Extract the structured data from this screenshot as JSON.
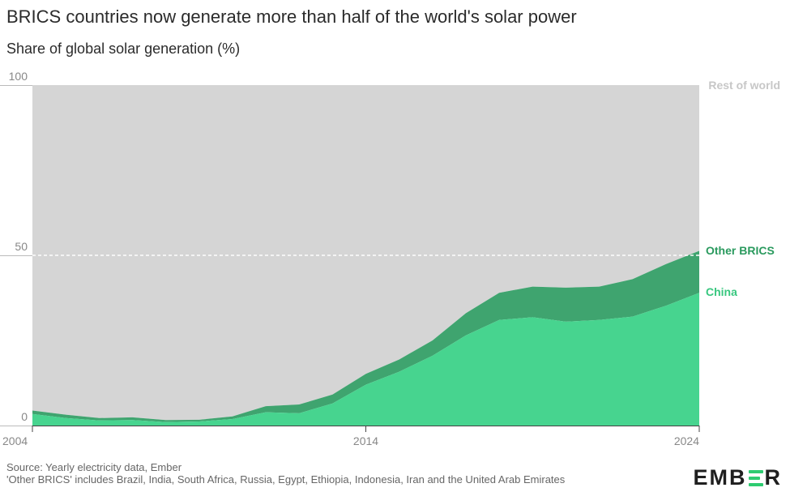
{
  "title": "BRICS countries now generate more than half of the world's solar power",
  "subtitle": "Share of global solar generation (%)",
  "source_line1": "Source: Yearly electricity data, Ember",
  "source_line2": "'Other BRICS' includes Brazil, India, South Africa, Russia, Egypt, Ethiopia, Indonesia, Iran and the United Arab Emirates",
  "logo": {
    "before": "EMB",
    "after": "R"
  },
  "colors": {
    "rest_of_world": "#d5d5d5",
    "other_brics": "#3fa46f",
    "china": "#47d48f",
    "brand_accent": "#2ecc71"
  },
  "chart_data": {
    "type": "area",
    "stacked": true,
    "x": [
      2004,
      2005,
      2006,
      2007,
      2008,
      2009,
      2010,
      2011,
      2012,
      2013,
      2014,
      2015,
      2016,
      2017,
      2018,
      2019,
      2020,
      2021,
      2022,
      2023,
      2024
    ],
    "series": [
      {
        "name": "China",
        "values": [
          3.4,
          2.2,
          1.5,
          1.6,
          1.0,
          1.2,
          1.9,
          3.9,
          3.6,
          6.5,
          12.0,
          15.8,
          20.5,
          26.5,
          31.0,
          31.8,
          30.5,
          31.0,
          32.0,
          35.2,
          39.0
        ]
      },
      {
        "name": "Other BRICS",
        "values": [
          1.0,
          1.0,
          0.7,
          0.8,
          0.6,
          0.5,
          0.8,
          1.8,
          2.6,
          2.6,
          3.2,
          3.6,
          4.5,
          6.5,
          8.0,
          9.0,
          10.0,
          9.8,
          11.0,
          12.2,
          12.3
        ]
      },
      {
        "name": "Rest of world",
        "values": [
          95.6,
          96.8,
          97.8,
          97.6,
          98.4,
          98.3,
          97.3,
          94.3,
          93.8,
          90.9,
          84.8,
          80.6,
          75.0,
          67.0,
          61.0,
          59.2,
          59.5,
          59.2,
          57.0,
          52.6,
          48.7
        ]
      }
    ],
    "ylim": [
      0,
      100
    ],
    "yticks": [
      "0",
      "50",
      "100"
    ],
    "xticks": [
      "2004",
      "2014",
      "2024"
    ],
    "reference_line": 50,
    "grid": false,
    "legend": "right-end labels"
  }
}
